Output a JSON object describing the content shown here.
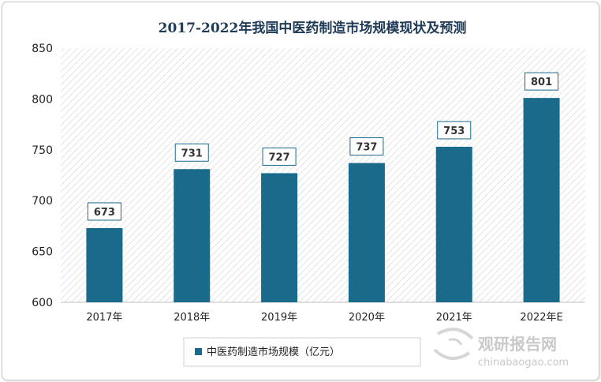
{
  "chart_data": {
    "type": "bar",
    "title": "2017-2022年我国中医药制造市场规模现状及预测",
    "categories": [
      "2017年",
      "2018年",
      "2019年",
      "2020年",
      "2021年",
      "2022年E"
    ],
    "series": [
      {
        "name": "中医药制造市场规模（亿元）",
        "values": [
          673,
          731,
          727,
          737,
          753,
          801
        ]
      }
    ],
    "data_labels": [
      "673",
      "731",
      "727",
      "737",
      "753",
      "801"
    ],
    "ylim": [
      600,
      850
    ],
    "yticks": [
      "600",
      "650",
      "700",
      "750",
      "800",
      "850"
    ],
    "xlabel": "",
    "ylabel": "",
    "grid": false,
    "legend": "bottom",
    "colors": {
      "bar": "#1a6a8c"
    }
  },
  "watermark": {
    "text_cn": "观研报告网",
    "text_en": "chinabaogao.com"
  }
}
